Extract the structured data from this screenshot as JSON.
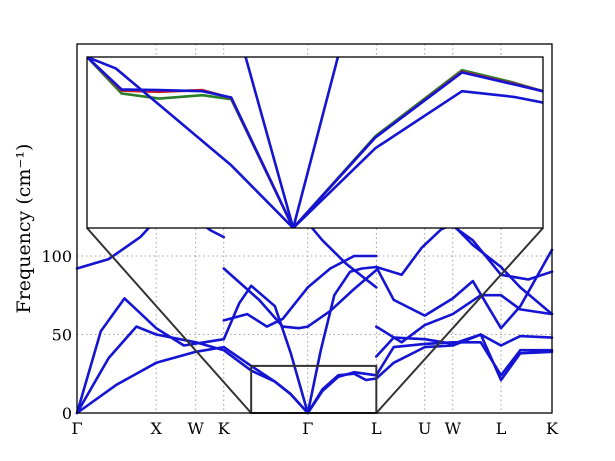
{
  "chart_data": {
    "type": "line",
    "title": "",
    "xlabel": "",
    "ylabel": "Frequency (cm⁻¹)",
    "ylim": [
      0,
      235
    ],
    "grid": true,
    "ytick_values": [
      0,
      50,
      100
    ],
    "ytick_labels": [
      "0",
      "50",
      "100"
    ],
    "high_symmetry_points": [
      {
        "label": "Γ",
        "x": 0.0
      },
      {
        "label": "X",
        "x": 1.0
      },
      {
        "label": "W",
        "x": 1.5
      },
      {
        "label": "K",
        "x": 1.854
      },
      {
        "label": "Γ",
        "x": 2.915
      },
      {
        "label": "L",
        "x": 3.781
      },
      {
        "label": "U",
        "x": 4.393
      },
      {
        "label": "W",
        "x": 4.747
      },
      {
        "label": "L",
        "x": 5.356
      },
      {
        "label": "K",
        "x": 6.0
      }
    ],
    "series": [
      {
        "color": "#1414d2",
        "values": [
          [
            [
              0,
              0
            ],
            [
              0.5,
              18
            ],
            [
              1.0,
              32
            ],
            [
              1.5,
              39
            ],
            [
              1.854,
              42
            ],
            [
              2.2,
              30
            ],
            [
              2.5,
              20
            ],
            [
              2.7,
              12
            ],
            [
              2.915,
              0
            ]
          ],
          [
            [
              0,
              0
            ],
            [
              0.4,
              35
            ],
            [
              0.75,
              55
            ],
            [
              1.0,
              50
            ],
            [
              1.5,
              45
            ],
            [
              1.854,
              40
            ],
            [
              2.2,
              27
            ],
            [
              2.5,
              20
            ],
            [
              2.7,
              12
            ],
            [
              2.915,
              0
            ]
          ],
          [
            [
              0,
              0
            ],
            [
              0.3,
              52
            ],
            [
              0.6,
              73
            ],
            [
              1.0,
              54
            ],
            [
              1.35,
              43
            ],
            [
              1.854,
              47
            ],
            [
              2.05,
              70
            ],
            [
              2.2,
              81
            ],
            [
              2.5,
              68
            ],
            [
              2.7,
              38
            ],
            [
              2.915,
              0
            ]
          ],
          [
            [
              2.915,
              0
            ],
            [
              3.1,
              15
            ],
            [
              3.3,
              24
            ],
            [
              3.5,
              25
            ],
            [
              3.65,
              21
            ],
            [
              3.781,
              22
            ]
          ],
          [
            [
              2.915,
              0
            ],
            [
              3.1,
              14
            ],
            [
              3.3,
              23
            ],
            [
              3.5,
              26
            ],
            [
              3.781,
              24
            ]
          ],
          [
            [
              2.915,
              0
            ],
            [
              3.08,
              40
            ],
            [
              3.25,
              75
            ],
            [
              3.45,
              90
            ],
            [
              3.6,
              92
            ],
            [
              3.781,
              93
            ]
          ],
          [
            [
              3.781,
              22
            ],
            [
              4.0,
              32
            ],
            [
              4.393,
              42
            ],
            [
              4.747,
              43
            ],
            [
              5.1,
              50
            ],
            [
              5.356,
              21
            ],
            [
              5.6,
              38
            ],
            [
              6.0,
              39
            ]
          ],
          [
            [
              3.781,
              24
            ],
            [
              4.0,
              42
            ],
            [
              4.393,
              44
            ],
            [
              4.747,
              45
            ],
            [
              5.1,
              45
            ],
            [
              5.356,
              24
            ],
            [
              5.6,
              40
            ],
            [
              6.0,
              40
            ]
          ],
          [
            [
              3.781,
              36
            ],
            [
              4.0,
              48
            ],
            [
              4.393,
              47
            ],
            [
              4.747,
              44
            ],
            [
              5.1,
              50
            ],
            [
              5.356,
              43
            ],
            [
              5.6,
              49
            ],
            [
              6.0,
              48
            ]
          ],
          [
            [
              3.781,
              55
            ],
            [
              4.1,
              45
            ],
            [
              4.393,
              56
            ],
            [
              4.747,
              63
            ],
            [
              5.1,
              75
            ],
            [
              5.356,
              75
            ],
            [
              5.6,
              66
            ],
            [
              6.0,
              63
            ]
          ],
          [
            [
              3.781,
              93
            ],
            [
              4.0,
              72
            ],
            [
              4.393,
              62
            ],
            [
              4.747,
              73
            ],
            [
              5.0,
              84
            ],
            [
              5.356,
              54
            ],
            [
              5.6,
              68
            ],
            [
              6.0,
              104
            ]
          ],
          [
            [
              3.781,
              93
            ],
            [
              4.1,
              88
            ],
            [
              4.35,
              105
            ],
            [
              4.6,
              117
            ],
            [
              4.747,
              120
            ],
            [
              5.0,
              107
            ],
            [
              5.356,
              93
            ],
            [
              5.6,
              80
            ],
            [
              6.0,
              63
            ]
          ],
          [
            [
              1.854,
              59
            ],
            [
              2.15,
              63
            ],
            [
              2.4,
              55
            ],
            [
              2.6,
              60
            ],
            [
              2.915,
              80
            ]
          ],
          [
            [
              1.854,
              92
            ],
            [
              2.3,
              72
            ],
            [
              2.6,
              55
            ],
            [
              2.8,
              54
            ],
            [
              2.915,
              55
            ]
          ],
          [
            [
              2.915,
              80
            ],
            [
              3.2,
              92
            ],
            [
              3.5,
              100
            ],
            [
              3.781,
              100
            ]
          ],
          [
            [
              2.915,
              55
            ],
            [
              3.2,
              65
            ],
            [
              3.5,
              79
            ],
            [
              3.781,
              91
            ]
          ],
          [
            [
              0,
              92
            ],
            [
              0.4,
              98
            ],
            [
              0.8,
              112
            ],
            [
              1.0,
              123
            ]
          ],
          [
            [
              1.5,
              123
            ],
            [
              1.7,
              116
            ],
            [
              1.854,
              112
            ]
          ],
          [
            [
              2.9,
              122
            ],
            [
              3.1,
              110
            ],
            [
              3.4,
              95
            ],
            [
              3.781,
              80
            ]
          ],
          [
            [
              4.5,
              123
            ],
            [
              4.75,
              119
            ],
            [
              5.0,
              110
            ],
            [
              5.356,
              88
            ],
            [
              5.7,
              85
            ],
            [
              6.0,
              90
            ]
          ]
        ]
      }
    ],
    "inset": {
      "xlim": [
        2.2,
        3.781
      ],
      "ylim": [
        0,
        30
      ],
      "series": [
        {
          "color": "#2a7f2a",
          "values": [
            [
              2.2,
              30
            ],
            [
              2.32,
              23.6
            ],
            [
              2.45,
              22.7
            ],
            [
              2.6,
              23.3
            ],
            [
              2.7,
              22.6
            ],
            [
              2.915,
              0
            ],
            [
              3.2,
              16.1
            ],
            [
              3.5,
              27.7
            ],
            [
              3.68,
              25.5
            ],
            [
              3.781,
              24
            ]
          ]
        },
        {
          "color": "#d22020",
          "values": [
            [
              2.2,
              30
            ],
            [
              2.32,
              24.1
            ],
            [
              2.45,
              23.9
            ],
            [
              2.6,
              24.2
            ],
            [
              2.7,
              22.8
            ],
            [
              2.915,
              0
            ],
            [
              3.2,
              15.9
            ],
            [
              3.5,
              27.4
            ],
            [
              3.68,
              25.3
            ],
            [
              3.781,
              24
            ]
          ]
        },
        {
          "color": "#1414d2",
          "values": [
            [
              2.2,
              30
            ],
            [
              2.32,
              24.3
            ],
            [
              2.45,
              24.2
            ],
            [
              2.6,
              24.0
            ],
            [
              2.7,
              22.9
            ],
            [
              2.915,
              0
            ],
            [
              3.2,
              15.9
            ],
            [
              3.5,
              27.3
            ],
            [
              3.68,
              25.2
            ],
            [
              3.781,
              24
            ]
          ]
        },
        {
          "color": "#1414d2",
          "values": [
            [
              2.2,
              30
            ],
            [
              2.3,
              28
            ],
            [
              2.5,
              19.5
            ],
            [
              2.7,
              11
            ],
            [
              2.915,
              0
            ],
            [
              3.2,
              14
            ],
            [
              3.5,
              24
            ],
            [
              3.68,
              23
            ],
            [
              3.781,
              22
            ]
          ]
        },
        {
          "color": "#1414d2",
          "values": [
            [
              2.75,
              30
            ],
            [
              2.915,
              0
            ]
          ]
        },
        {
          "color": "#1414d2",
          "values": [
            [
              2.915,
              0
            ],
            [
              3.07,
              30
            ]
          ]
        }
      ]
    }
  }
}
